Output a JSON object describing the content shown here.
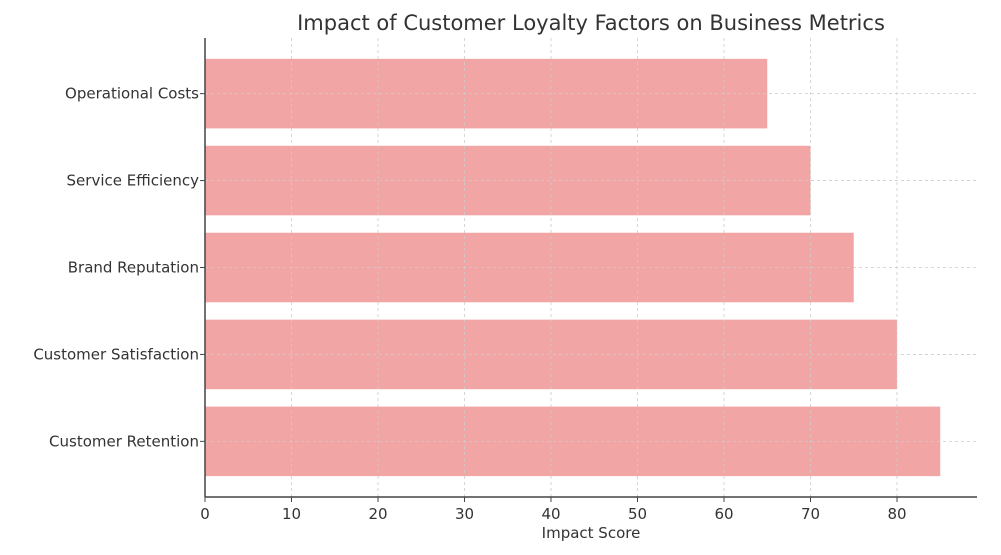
{
  "chart_data": {
    "type": "bar",
    "orientation": "horizontal",
    "title": "Impact of Customer Loyalty Factors on Business Metrics",
    "xlabel": "Impact Score",
    "ylabel": "",
    "categories": [
      "Customer Retention",
      "Customer Satisfaction",
      "Brand Reputation",
      "Service Efficiency",
      "Operational Costs"
    ],
    "values": [
      85,
      80,
      75,
      70,
      65
    ],
    "xlim": [
      0,
      89.25
    ],
    "xticks": [
      0,
      10,
      20,
      30,
      40,
      50,
      60,
      70,
      80
    ],
    "grid": true,
    "legend": "none",
    "colors": {
      "bar": "#F2A5A5",
      "axis": "#444444",
      "grid": "#cccccc"
    }
  }
}
